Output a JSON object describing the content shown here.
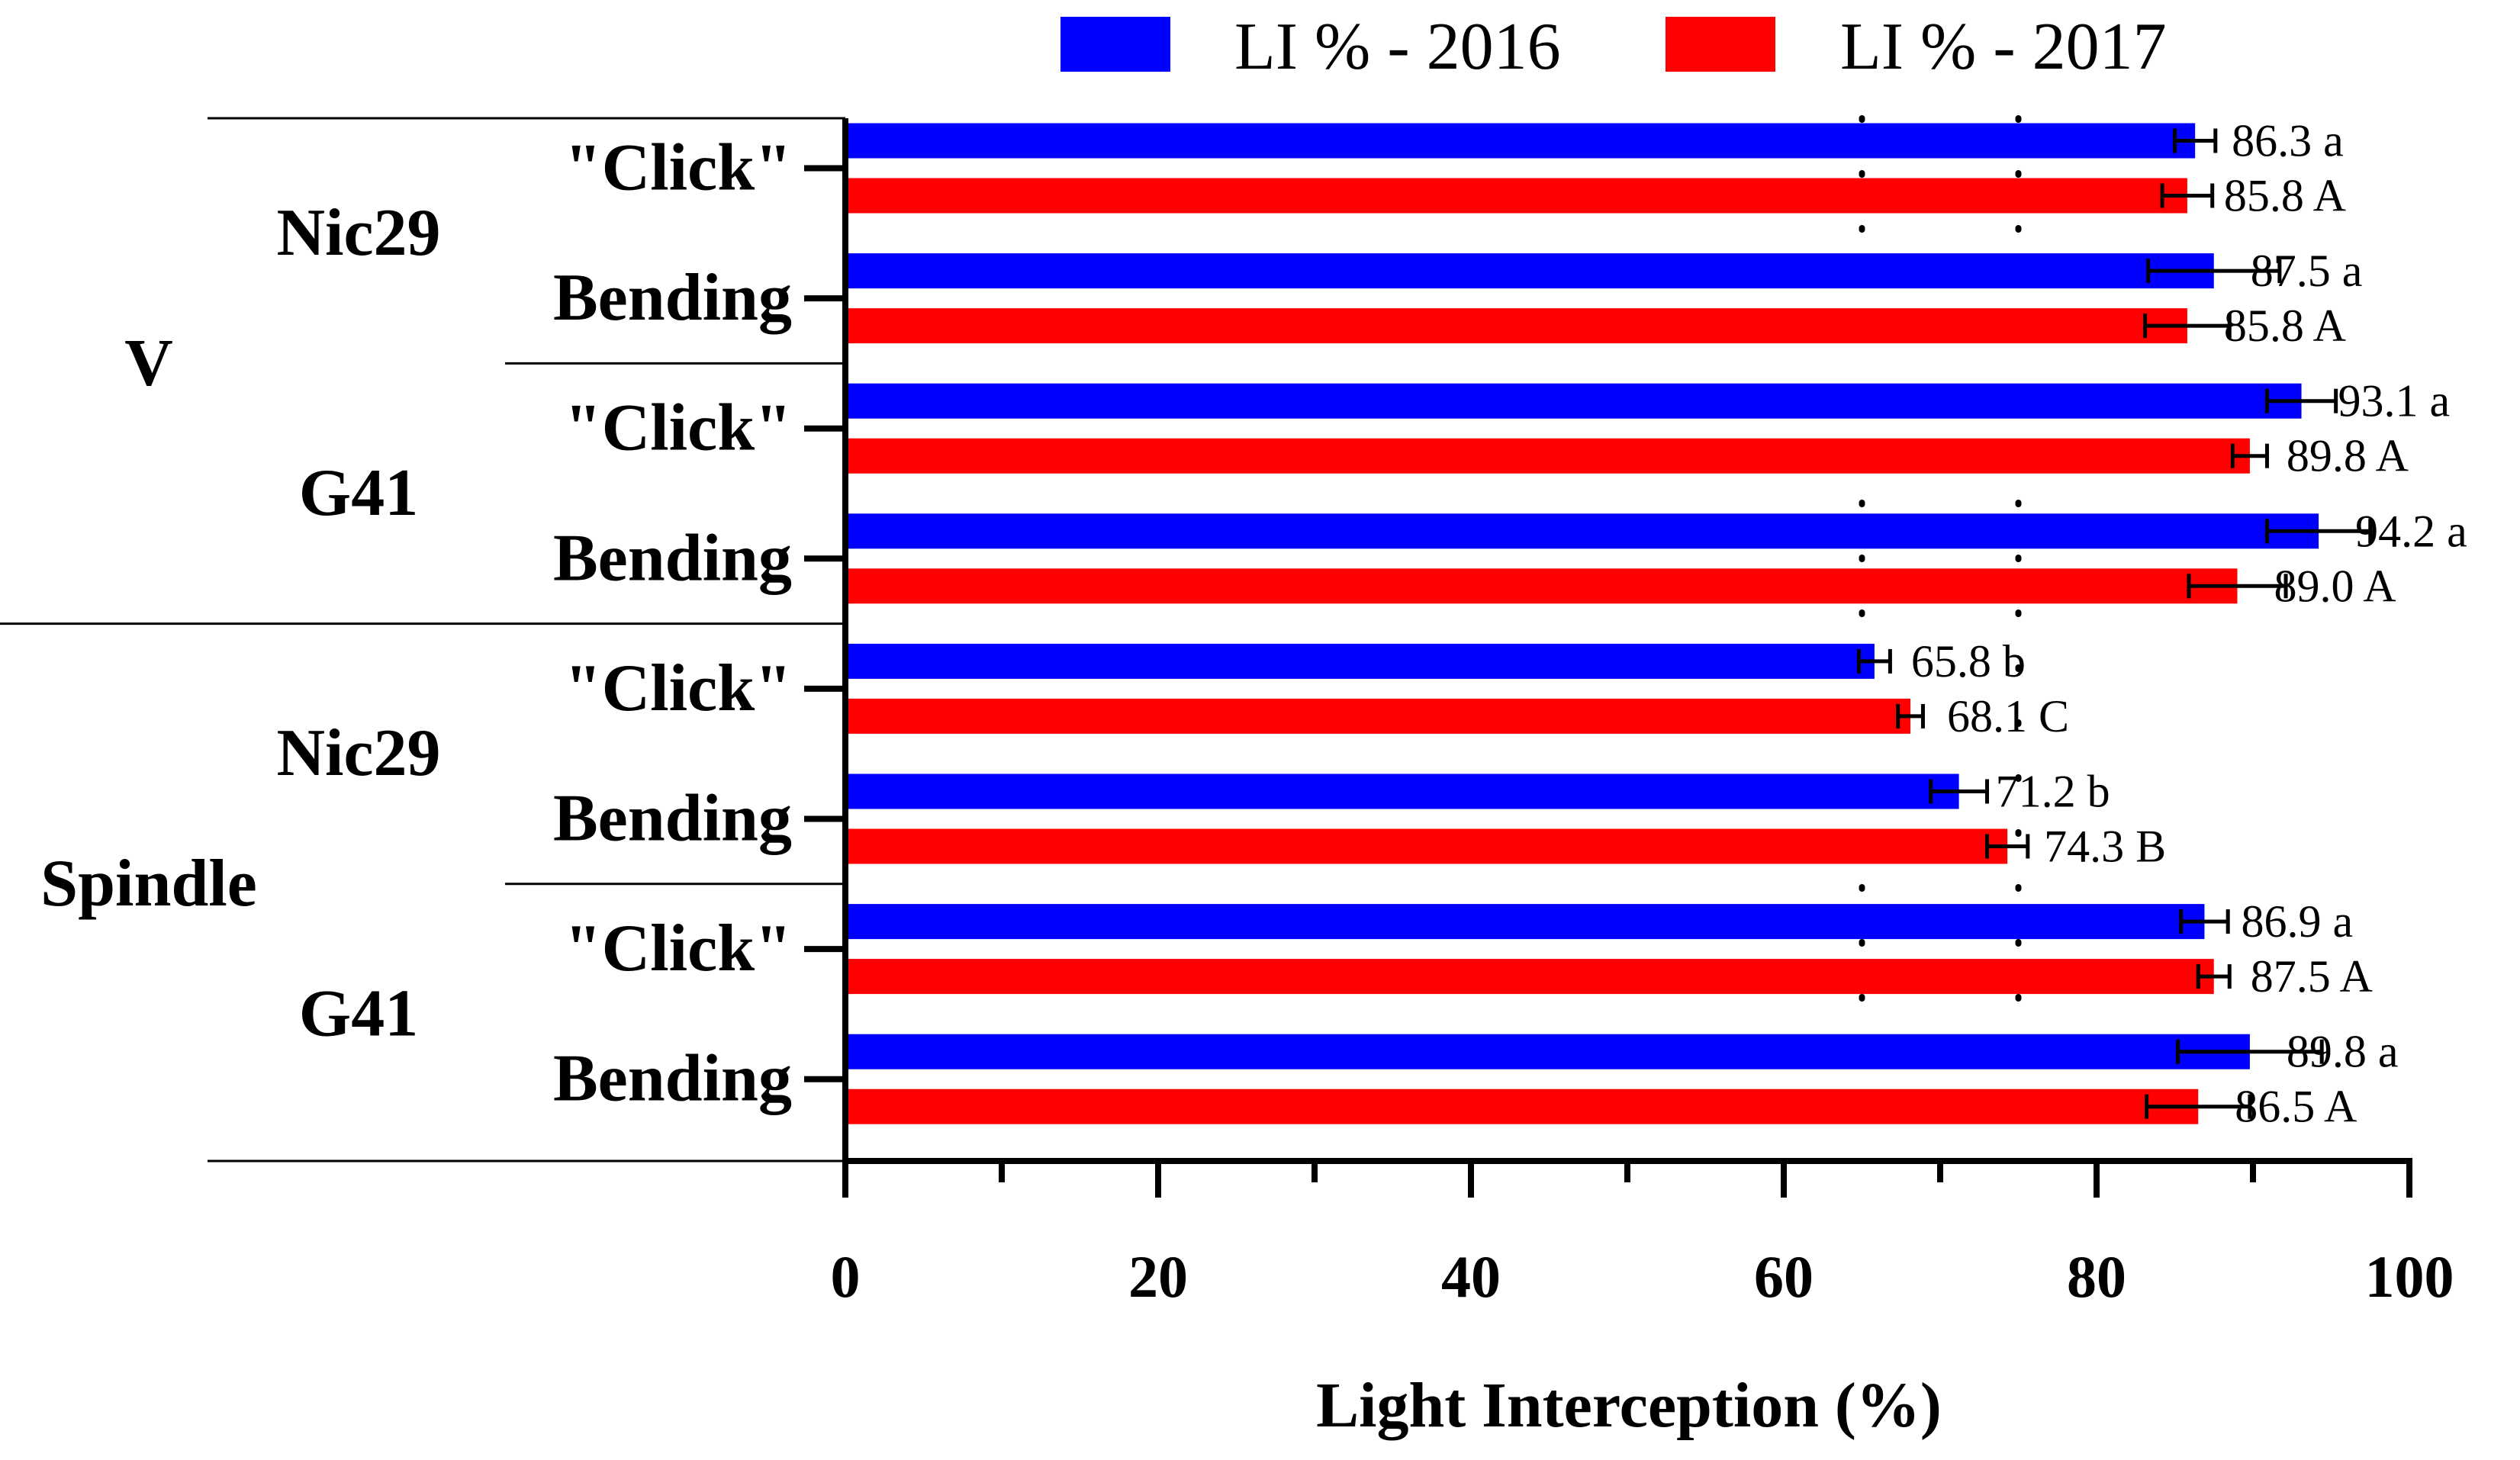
{
  "chart_data": {
    "type": "bar",
    "orientation": "horizontal",
    "xlabel": "Light Interception (%)",
    "xlim": [
      0,
      100
    ],
    "major_ticks": [
      0,
      20,
      40,
      60,
      80,
      100
    ],
    "minor_ticks": [
      10,
      30,
      50,
      70,
      90
    ],
    "tick_labels": [
      "0",
      "20",
      "40",
      "60",
      "80",
      "100"
    ],
    "reference_lines": [
      65,
      75
    ],
    "legend_placement": "top",
    "series": [
      {
        "name": "LI % - 2016",
        "color": "#0000ff"
      },
      {
        "name": "LI % - 2017",
        "color": "#ff0000"
      }
    ],
    "groups": [
      {
        "system": "V",
        "rootstocks": [
          {
            "name": "Nic29",
            "treatments": [
              {
                "label": "\"Click\"",
                "values": [
                  86.3,
                  85.8
                ],
                "errors": [
                  1.3,
                  1.6
                ],
                "data_labels": [
                  "86.3 a",
                  "85.8 A"
                ]
              },
              {
                "label": "Bending",
                "values": [
                  87.5,
                  85.8
                ],
                "errors": [
                  4.2,
                  2.7
                ],
                "data_labels": [
                  "87.5 a",
                  "85.8 A"
                ]
              }
            ]
          },
          {
            "name": "G41",
            "treatments": [
              {
                "label": "\"Click\"",
                "values": [
                  93.1,
                  89.8
                ],
                "errors": [
                  2.2,
                  1.1
                ],
                "data_labels": [
                  "93.1 a",
                  "89.8 A"
                ]
              },
              {
                "label": "Bending",
                "values": [
                  94.2,
                  89.0
                ],
                "errors": [
                  3.3,
                  3.1
                ],
                "data_labels": [
                  "94.2 a",
                  "89.0 A"
                ]
              }
            ]
          }
        ]
      },
      {
        "system": "Spindle",
        "rootstocks": [
          {
            "name": "Nic29",
            "treatments": [
              {
                "label": "\"Click\"",
                "values": [
                  65.8,
                  68.1
                ],
                "errors": [
                  1.0,
                  0.8
                ],
                "data_labels": [
                  "65.8 b",
                  "68.1 C"
                ]
              },
              {
                "label": "Bending",
                "values": [
                  71.2,
                  74.3
                ],
                "errors": [
                  1.8,
                  1.3
                ],
                "data_labels": [
                  "71.2 b",
                  "74.3 B"
                ]
              }
            ]
          },
          {
            "name": "G41",
            "treatments": [
              {
                "label": "\"Click\"",
                "values": [
                  86.9,
                  87.5
                ],
                "errors": [
                  1.5,
                  1.0
                ],
                "data_labels": [
                  "86.9 a",
                  "87.5 A"
                ]
              },
              {
                "label": "Bending",
                "values": [
                  89.8,
                  86.5
                ],
                "errors": [
                  4.6,
                  3.3
                ],
                "data_labels": [
                  "89.8 a",
                  "86.5 A"
                ]
              }
            ]
          }
        ]
      }
    ]
  }
}
